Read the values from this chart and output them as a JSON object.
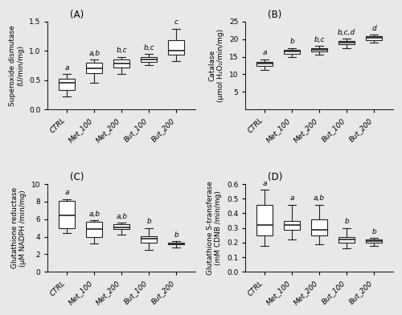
{
  "categories": [
    "CTRL",
    "Met_100",
    "Met_200",
    "But_100",
    "But_200"
  ],
  "panels": [
    {
      "label": "(A)",
      "ylabel": "Superoxide dismutase\n(U/min/mg)",
      "ylim": [
        0.0,
        1.5
      ],
      "yticks": [
        0.0,
        0.5,
        1.0,
        1.5
      ],
      "sig_labels": [
        "a",
        "a,b",
        "b,c",
        "b,c",
        "c"
      ],
      "boxes": [
        {
          "med": 0.45,
          "q1": 0.33,
          "q3": 0.52,
          "whislo": 0.22,
          "whishi": 0.6
        },
        {
          "med": 0.7,
          "q1": 0.62,
          "q3": 0.8,
          "whislo": 0.45,
          "whishi": 0.85
        },
        {
          "med": 0.78,
          "q1": 0.72,
          "q3": 0.85,
          "whislo": 0.6,
          "whishi": 0.9
        },
        {
          "med": 0.85,
          "q1": 0.81,
          "q3": 0.9,
          "whislo": 0.75,
          "whishi": 0.95
        },
        {
          "med": 1.01,
          "q1": 0.93,
          "q3": 1.18,
          "whislo": 0.82,
          "whishi": 1.38
        }
      ]
    },
    {
      "label": "(B)",
      "ylabel": "Catalase\n(µmol H₂O₂/min/mg)",
      "ylim": [
        0,
        25
      ],
      "yticks": [
        5,
        10,
        15,
        20,
        25
      ],
      "sig_labels": [
        "a",
        "b",
        "b,c",
        "b,c,d",
        "d"
      ],
      "boxes": [
        {
          "med": 13.0,
          "q1": 12.3,
          "q3": 13.5,
          "whislo": 11.2,
          "whishi": 14.3
        },
        {
          "med": 16.5,
          "q1": 15.8,
          "q3": 17.0,
          "whislo": 14.9,
          "whishi": 17.5
        },
        {
          "med": 17.0,
          "q1": 16.5,
          "q3": 17.5,
          "whislo": 15.5,
          "whishi": 18.0
        },
        {
          "med": 19.0,
          "q1": 18.5,
          "q3": 19.5,
          "whislo": 17.5,
          "whishi": 20.2
        },
        {
          "med": 20.3,
          "q1": 19.8,
          "q3": 20.8,
          "whislo": 19.0,
          "whishi": 21.2
        }
      ]
    },
    {
      "label": "(C)",
      "ylabel": "Glutathione reductase\n(µM NADPH /min/mg)",
      "ylim": [
        0,
        10
      ],
      "yticks": [
        0,
        2,
        4,
        6,
        8,
        10
      ],
      "sig_labels": [
        "a",
        "a,b",
        "a,b",
        "b",
        "b"
      ],
      "boxes": [
        {
          "med": 6.4,
          "q1": 5.0,
          "q3": 8.1,
          "whislo": 4.4,
          "whishi": 8.3
        },
        {
          "med": 4.9,
          "q1": 4.0,
          "q3": 5.7,
          "whislo": 3.2,
          "whishi": 5.9
        },
        {
          "med": 5.1,
          "q1": 4.9,
          "q3": 5.4,
          "whislo": 4.2,
          "whishi": 5.6
        },
        {
          "med": 3.8,
          "q1": 3.3,
          "q3": 4.1,
          "whislo": 2.5,
          "whishi": 5.0
        },
        {
          "med": 3.2,
          "q1": 3.1,
          "q3": 3.35,
          "whislo": 2.8,
          "whishi": 3.5
        }
      ]
    },
    {
      "label": "(D)",
      "ylabel": "Glutathione S-transferase\n(mM CDNB /min/mg)",
      "ylim": [
        0.0,
        0.6
      ],
      "yticks": [
        0.0,
        0.1,
        0.2,
        0.3,
        0.4,
        0.5,
        0.6
      ],
      "sig_labels": [
        "a",
        "a",
        "a,b",
        "b",
        "b"
      ],
      "boxes": [
        {
          "med": 0.32,
          "q1": 0.25,
          "q3": 0.46,
          "whislo": 0.18,
          "whishi": 0.56
        },
        {
          "med": 0.32,
          "q1": 0.29,
          "q3": 0.35,
          "whislo": 0.22,
          "whishi": 0.46
        },
        {
          "med": 0.29,
          "q1": 0.25,
          "q3": 0.36,
          "whislo": 0.19,
          "whishi": 0.46
        },
        {
          "med": 0.22,
          "q1": 0.2,
          "q3": 0.24,
          "whislo": 0.16,
          "whishi": 0.3
        },
        {
          "med": 0.21,
          "q1": 0.2,
          "q3": 0.22,
          "whislo": 0.18,
          "whishi": 0.23
        }
      ]
    }
  ],
  "box_facecolor": "white",
  "box_edgecolor": "#222222",
  "median_color": "#222222",
  "whisker_color": "#222222",
  "cap_color": "#222222",
  "background_color": "#e8e8e8",
  "sig_label_fontsize": 6.5,
  "axis_label_fontsize": 6.5,
  "tick_label_fontsize": 6.5,
  "panel_label_fontsize": 8.5
}
